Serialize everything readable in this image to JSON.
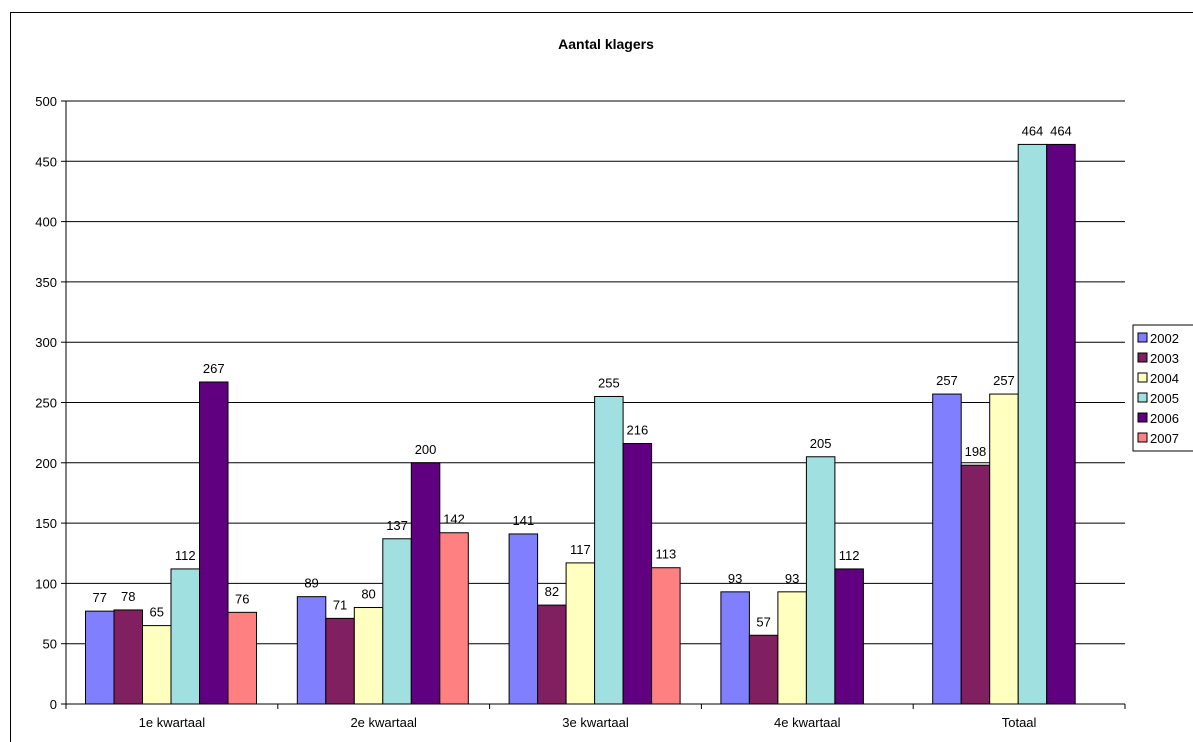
{
  "chart_data": {
    "type": "bar",
    "title": "Aantal klagers",
    "xlabel": "",
    "ylabel": "",
    "ylim": [
      0,
      500
    ],
    "yticks": [
      0,
      50,
      100,
      150,
      200,
      250,
      300,
      350,
      400,
      450,
      500
    ],
    "grid": true,
    "legend_position": "right",
    "categories": [
      "1e kwartaal",
      "2e kwartaal",
      "3e kwartaal",
      "4e kwartaal",
      "Totaal"
    ],
    "series": [
      {
        "name": "2002",
        "color": "#8080FF",
        "values": [
          77,
          89,
          141,
          93,
          257
        ]
      },
      {
        "name": "2003",
        "color": "#802060",
        "values": [
          78,
          71,
          82,
          57,
          198
        ]
      },
      {
        "name": "2004",
        "color": "#FFFFC0",
        "values": [
          65,
          80,
          117,
          93,
          257
        ]
      },
      {
        "name": "2005",
        "color": "#A0E0E0",
        "values": [
          112,
          137,
          255,
          205,
          464
        ]
      },
      {
        "name": "2006",
        "color": "#600080",
        "values": [
          267,
          200,
          216,
          112,
          464
        ]
      },
      {
        "name": "2007",
        "color": "#FF8080",
        "values": [
          76,
          142,
          113,
          null,
          null
        ]
      }
    ]
  }
}
